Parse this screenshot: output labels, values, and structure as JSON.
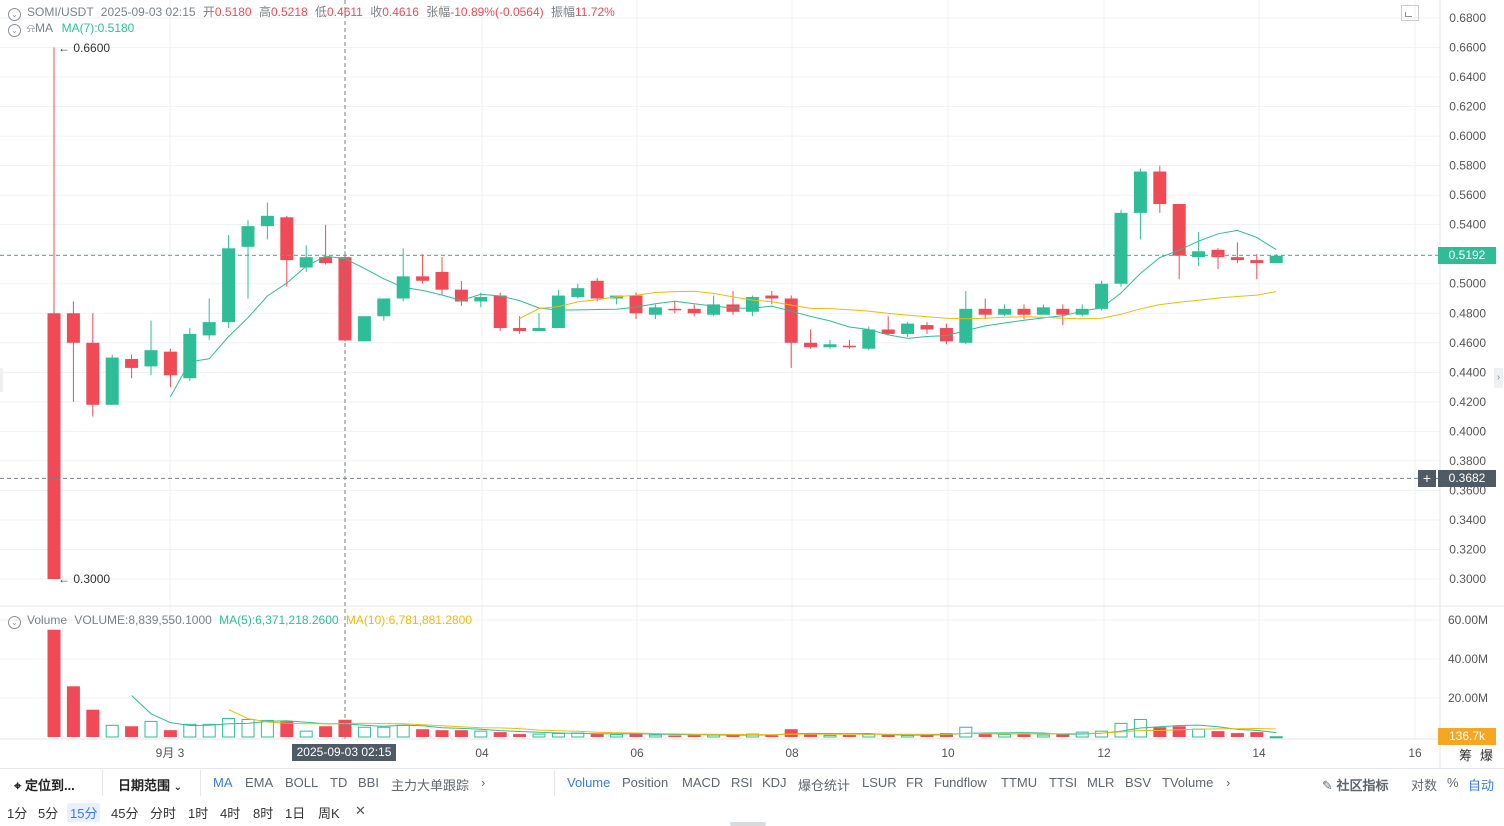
{
  "header": {
    "symbol": "SOMI/USDT",
    "datetime": "2025-09-03 02:15",
    "open_label": "开",
    "open": "0.5180",
    "high_label": "高",
    "high": "0.5218",
    "low_label": "低",
    "low": "0.4611",
    "close_label": "收",
    "close": "0.4616",
    "change_label": "张幅",
    "change": "-10.89%(-0.0564)",
    "amplitude_label": "振幅",
    "amplitude": "11.72%",
    "ma_label": "MA",
    "ma7": "MA(7):0.5180"
  },
  "volume_header": {
    "label": "Volume",
    "volume": "VOLUME:8,839,550.1000",
    "ma5": "MA(5):6,371,218.2600",
    "ma10": "MA(10):6,781,881.2800"
  },
  "colors": {
    "up": "#2ebd96",
    "down": "#ef4a56",
    "ma_short": "#2ebd96",
    "ma_long": "#f0b90b",
    "accent": "#3a7be0"
  },
  "price_axis": [
    "0.6800",
    "0.6600",
    "0.6400",
    "0.6200",
    "0.6000",
    "0.5800",
    "0.5600",
    "0.5400",
    "0.5200",
    "0.5000",
    "0.4800",
    "0.4600",
    "0.4400",
    "0.4200",
    "0.4000",
    "0.3800",
    "0.3600",
    "0.3400",
    "0.3200",
    "0.3000"
  ],
  "volume_axis": [
    "60.00M",
    "40.00M",
    "20.00M"
  ],
  "volume_tag": "136.7k",
  "last_price_tag": "0.5192",
  "crosshair_price_tag": "0.3682",
  "crosshair_time_tag": "2025-09-03 02:15",
  "high_marker": "0.6600",
  "low_marker": "0.3000",
  "time_axis": [
    "9月 3",
    "04",
    "06",
    "08",
    "10",
    "12",
    "14",
    "16"
  ],
  "corner_labels": [
    "筹",
    "爆"
  ],
  "chart_data": {
    "type": "candlestick",
    "ylim": [
      0.3,
      0.68
    ],
    "volume_ylim": [
      0,
      60000000
    ],
    "candles": [
      {
        "o": 0.48,
        "h": 0.66,
        "l": 0.3,
        "c": 0.3,
        "v": 55000000
      },
      {
        "o": 0.48,
        "h": 0.488,
        "l": 0.42,
        "c": 0.46,
        "v": 26000000
      },
      {
        "o": 0.46,
        "h": 0.48,
        "l": 0.41,
        "c": 0.418,
        "v": 14000000
      },
      {
        "o": 0.418,
        "h": 0.452,
        "l": 0.418,
        "c": 0.45,
        "v": 6000000
      },
      {
        "o": 0.449,
        "h": 0.452,
        "l": 0.436,
        "c": 0.443,
        "v": 5500000
      },
      {
        "o": 0.444,
        "h": 0.475,
        "l": 0.438,
        "c": 0.455,
        "v": 8000000
      },
      {
        "o": 0.454,
        "h": 0.456,
        "l": 0.43,
        "c": 0.438,
        "v": 3500000
      },
      {
        "o": 0.436,
        "h": 0.47,
        "l": 0.434,
        "c": 0.466,
        "v": 6500000
      },
      {
        "o": 0.465,
        "h": 0.49,
        "l": 0.462,
        "c": 0.474,
        "v": 6500000
      },
      {
        "o": 0.474,
        "h": 0.533,
        "l": 0.47,
        "c": 0.524,
        "v": 9500000
      },
      {
        "o": 0.525,
        "h": 0.543,
        "l": 0.49,
        "c": 0.539,
        "v": 9000000
      },
      {
        "o": 0.539,
        "h": 0.555,
        "l": 0.53,
        "c": 0.546,
        "v": 8500000
      },
      {
        "o": 0.545,
        "h": 0.546,
        "l": 0.498,
        "c": 0.516,
        "v": 8000000
      },
      {
        "o": 0.511,
        "h": 0.526,
        "l": 0.508,
        "c": 0.518,
        "v": 3000000
      },
      {
        "o": 0.518,
        "h": 0.54,
        "l": 0.513,
        "c": 0.514,
        "v": 5500000
      },
      {
        "o": 0.518,
        "h": 0.522,
        "l": 0.461,
        "c": 0.4616,
        "v": 8839550
      },
      {
        "o": 0.461,
        "h": 0.478,
        "l": 0.461,
        "c": 0.478,
        "v": 5000000
      },
      {
        "o": 0.478,
        "h": 0.49,
        "l": 0.475,
        "c": 0.49,
        "v": 5000000
      },
      {
        "o": 0.49,
        "h": 0.524,
        "l": 0.488,
        "c": 0.505,
        "v": 6000000
      },
      {
        "o": 0.505,
        "h": 0.52,
        "l": 0.5,
        "c": 0.502,
        "v": 4000000
      },
      {
        "o": 0.508,
        "h": 0.518,
        "l": 0.492,
        "c": 0.496,
        "v": 3500000
      },
      {
        "o": 0.496,
        "h": 0.502,
        "l": 0.485,
        "c": 0.488,
        "v": 3500000
      },
      {
        "o": 0.488,
        "h": 0.494,
        "l": 0.484,
        "c": 0.491,
        "v": 3000000
      },
      {
        "o": 0.492,
        "h": 0.494,
        "l": 0.468,
        "c": 0.47,
        "v": 2500000
      },
      {
        "o": 0.47,
        "h": 0.478,
        "l": 0.466,
        "c": 0.468,
        "v": 1500000
      },
      {
        "o": 0.468,
        "h": 0.48,
        "l": 0.468,
        "c": 0.47,
        "v": 1500000
      },
      {
        "o": 0.47,
        "h": 0.496,
        "l": 0.47,
        "c": 0.492,
        "v": 1800000
      },
      {
        "o": 0.491,
        "h": 0.5,
        "l": 0.49,
        "c": 0.497,
        "v": 2000000
      },
      {
        "o": 0.502,
        "h": 0.504,
        "l": 0.488,
        "c": 0.49,
        "v": 1500000
      },
      {
        "o": 0.49,
        "h": 0.492,
        "l": 0.486,
        "c": 0.492,
        "v": 1200000
      },
      {
        "o": 0.492,
        "h": 0.494,
        "l": 0.476,
        "c": 0.48,
        "v": 2000000
      },
      {
        "o": 0.479,
        "h": 0.486,
        "l": 0.476,
        "c": 0.484,
        "v": 1000000
      },
      {
        "o": 0.483,
        "h": 0.488,
        "l": 0.48,
        "c": 0.482,
        "v": 800000
      },
      {
        "o": 0.483,
        "h": 0.486,
        "l": 0.478,
        "c": 0.48,
        "v": 900000
      },
      {
        "o": 0.479,
        "h": 0.492,
        "l": 0.478,
        "c": 0.486,
        "v": 1000000
      },
      {
        "o": 0.486,
        "h": 0.495,
        "l": 0.479,
        "c": 0.481,
        "v": 1000000
      },
      {
        "o": 0.481,
        "h": 0.492,
        "l": 0.478,
        "c": 0.491,
        "v": 1500000
      },
      {
        "o": 0.492,
        "h": 0.495,
        "l": 0.486,
        "c": 0.49,
        "v": 800000
      },
      {
        "o": 0.49,
        "h": 0.492,
        "l": 0.443,
        "c": 0.46,
        "v": 4000000
      },
      {
        "o": 0.46,
        "h": 0.469,
        "l": 0.456,
        "c": 0.457,
        "v": 2000000
      },
      {
        "o": 0.457,
        "h": 0.462,
        "l": 0.456,
        "c": 0.459,
        "v": 800000
      },
      {
        "o": 0.458,
        "h": 0.462,
        "l": 0.456,
        "c": 0.457,
        "v": 1000000
      },
      {
        "o": 0.456,
        "h": 0.471,
        "l": 0.455,
        "c": 0.469,
        "v": 1200000
      },
      {
        "o": 0.469,
        "h": 0.478,
        "l": 0.465,
        "c": 0.466,
        "v": 1000000
      },
      {
        "o": 0.466,
        "h": 0.474,
        "l": 0.464,
        "c": 0.473,
        "v": 800000
      },
      {
        "o": 0.472,
        "h": 0.474,
        "l": 0.466,
        "c": 0.469,
        "v": 900000
      },
      {
        "o": 0.47,
        "h": 0.473,
        "l": 0.459,
        "c": 0.461,
        "v": 2000000
      },
      {
        "o": 0.46,
        "h": 0.495,
        "l": 0.459,
        "c": 0.483,
        "v": 5000000
      },
      {
        "o": 0.483,
        "h": 0.49,
        "l": 0.476,
        "c": 0.479,
        "v": 1500000
      },
      {
        "o": 0.479,
        "h": 0.486,
        "l": 0.478,
        "c": 0.483,
        "v": 1200000
      },
      {
        "o": 0.483,
        "h": 0.486,
        "l": 0.476,
        "c": 0.479,
        "v": 1500000
      },
      {
        "o": 0.479,
        "h": 0.486,
        "l": 0.479,
        "c": 0.484,
        "v": 1000000
      },
      {
        "o": 0.483,
        "h": 0.486,
        "l": 0.472,
        "c": 0.479,
        "v": 1500000
      },
      {
        "o": 0.479,
        "h": 0.486,
        "l": 0.478,
        "c": 0.483,
        "v": 2500000
      },
      {
        "o": 0.483,
        "h": 0.502,
        "l": 0.482,
        "c": 0.5,
        "v": 3000000
      },
      {
        "o": 0.5,
        "h": 0.55,
        "l": 0.498,
        "c": 0.548,
        "v": 7000000
      },
      {
        "o": 0.548,
        "h": 0.578,
        "l": 0.53,
        "c": 0.576,
        "v": 9000000
      },
      {
        "o": 0.576,
        "h": 0.58,
        "l": 0.548,
        "c": 0.554,
        "v": 5000000
      },
      {
        "o": 0.554,
        "h": 0.554,
        "l": 0.503,
        "c": 0.519,
        "v": 5500000
      },
      {
        "o": 0.518,
        "h": 0.535,
        "l": 0.512,
        "c": 0.522,
        "v": 4000000
      },
      {
        "o": 0.523,
        "h": 0.524,
        "l": 0.51,
        "c": 0.518,
        "v": 3000000
      },
      {
        "o": 0.518,
        "h": 0.528,
        "l": 0.514,
        "c": 0.516,
        "v": 2000000
      },
      {
        "o": 0.516,
        "h": 0.52,
        "l": 0.503,
        "c": 0.514,
        "v": 2500000
      },
      {
        "o": 0.514,
        "h": 0.52,
        "l": 0.514,
        "c": 0.519,
        "v": 136700
      }
    ]
  },
  "toolbar": {
    "locate": "定位到...",
    "date_range": "日期范围",
    "main_indicators": [
      "MA",
      "EMA",
      "BOLL",
      "TD",
      "BBI",
      "主力大单跟踪"
    ],
    "sub_indicators": [
      "Volume",
      "Position",
      "MACD",
      "RSI",
      "KDJ",
      "爆仓统计",
      "LSUR",
      "FR",
      "Fundflow",
      "TTMU",
      "TTSI",
      "MLR",
      "BSV",
      "TVolume"
    ],
    "community": "社区指标",
    "log_label": "对数",
    "percent_label": "%",
    "auto_label": "自动"
  },
  "timeframes": [
    "1分",
    "5分",
    "15分",
    "45分",
    "分时",
    "1时",
    "4时",
    "8时",
    "1日",
    "周K"
  ],
  "active_timeframe": "15分"
}
